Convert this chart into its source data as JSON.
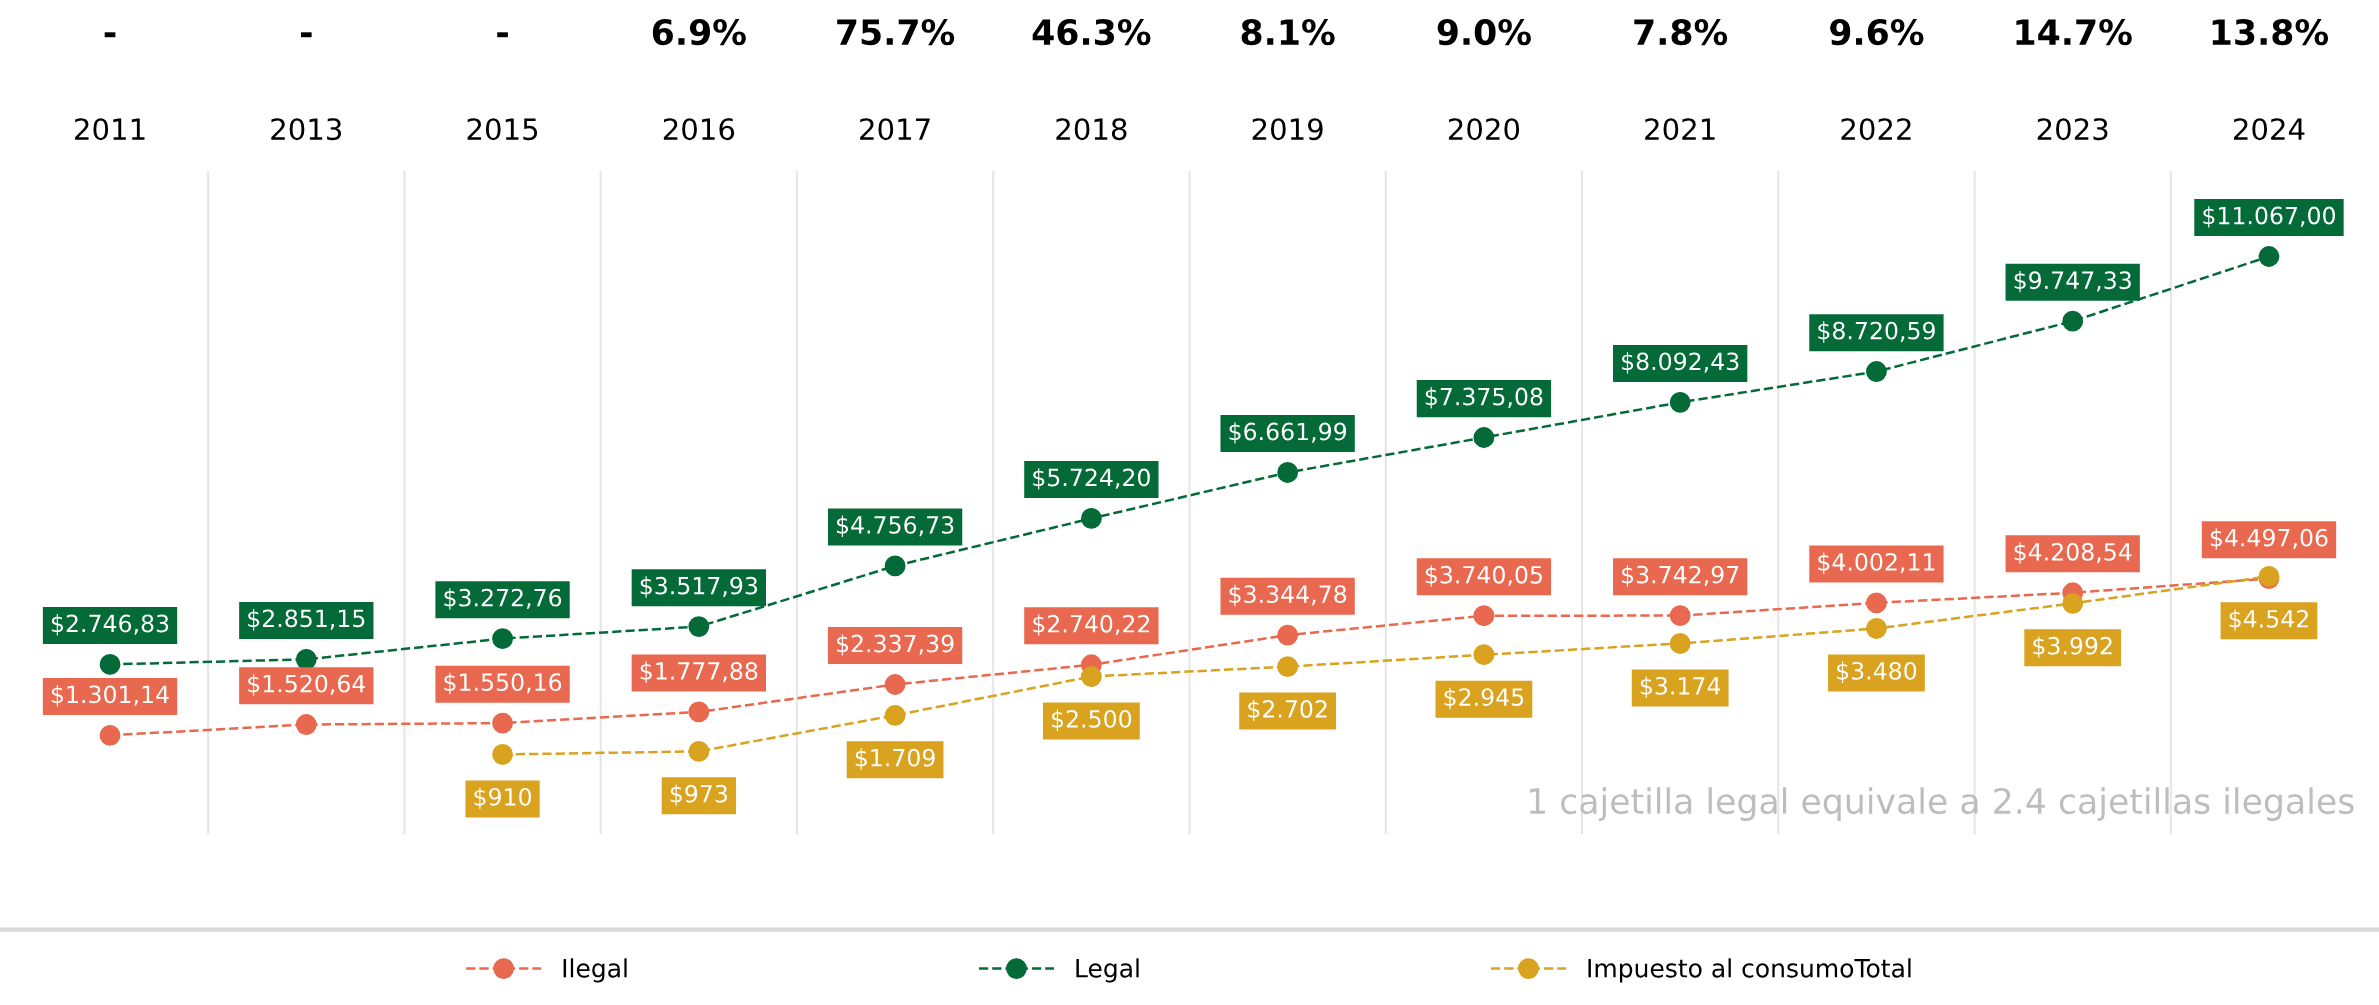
{
  "chart_data": {
    "type": "line",
    "categories": [
      "2011",
      "2013",
      "2015",
      "2016",
      "2017",
      "2018",
      "2019",
      "2020",
      "2021",
      "2022",
      "2023",
      "2024"
    ],
    "series": [
      {
        "name": "Ilegal",
        "color": "#e8694f",
        "values": [
          1301.14,
          1520.64,
          1550.16,
          1777.88,
          2337.39,
          2740.22,
          3344.78,
          3740.05,
          3742.97,
          4002.11,
          4208.54,
          4497.06
        ],
        "value_labels": [
          "$1.301,14",
          "$1.520,64",
          "$1.550,16",
          "$1.777,88",
          "$2.337,39",
          "$2.740,22",
          "$3.344,78",
          "$3.740,05",
          "$3.742,97",
          "$4.002,11",
          "$4.208,54",
          "$4.497,06"
        ]
      },
      {
        "name": "Legal",
        "color": "#046b38",
        "values": [
          2746.83,
          2851.15,
          3272.76,
          3517.93,
          4756.73,
          5724.2,
          6661.99,
          7375.08,
          8092.43,
          8720.59,
          9747.33,
          11067.0
        ],
        "value_labels": [
          "$2.746,83",
          "$2.851,15",
          "$3.272,76",
          "$3.517,93",
          "$4.756,73",
          "$5.724,20",
          "$6.661,99",
          "$7.375,08",
          "$8.092,43",
          "$8.720,59",
          "$9.747,33",
          "$11.067,00"
        ]
      },
      {
        "name": "Impuesto al consumoTotal",
        "color": "#d9a21f",
        "values": [
          null,
          null,
          910,
          973,
          1709,
          2500,
          2702,
          2945,
          3174,
          3480,
          3992,
          4542
        ],
        "value_labels": [
          null,
          null,
          "$910",
          "$973",
          "$1.709",
          "$2.500",
          "$2.702",
          "$2.945",
          "$3.174",
          "$3.480",
          "$3.992",
          "$4.542"
        ]
      }
    ],
    "annotations": [
      "-",
      "-",
      "-",
      "6.9%",
      "75.7%",
      "46.3%",
      "8.1%",
      "9.0%",
      "7.8%",
      "9.6%",
      "14.7%",
      "13.8%",
      "1 cajetilla legal equivale a 2.4 cajetillas ilegales"
    ],
    "marker": "circle",
    "line_style": "dashed",
    "grid": "x",
    "legend": "bottom",
    "tick_labels": "x"
  }
}
